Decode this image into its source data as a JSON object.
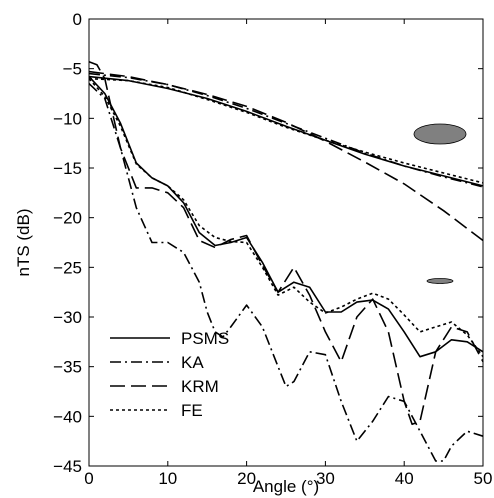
{
  "chart_data": {
    "type": "line",
    "title": "",
    "xlabel": "Angle (°)",
    "ylabel": "nTS (dB)",
    "xlim": [
      0,
      50
    ],
    "ylim": [
      -45,
      0
    ],
    "xticks": [
      0,
      10,
      20,
      30,
      40,
      50
    ],
    "yticks": [
      0,
      -5,
      -10,
      -15,
      -20,
      -25,
      -30,
      -35,
      -40,
      -45
    ],
    "grid": false,
    "legend_position": "bottom-left",
    "legend": [
      "PSMS",
      "KA",
      "KRM",
      "FE"
    ],
    "groups": [
      {
        "shape": "thick ellipse",
        "color": "#808080",
        "series": [
          {
            "name": "PSMS",
            "style": "solid",
            "x": [
              0,
              5,
              10,
              15,
              20,
              25,
              30,
              35,
              40,
              45,
              50
            ],
            "y": [
              -5.8,
              -6.2,
              -7.0,
              -8.0,
              -9.3,
              -10.8,
              -12.2,
              -13.6,
              -14.8,
              -15.8,
              -16.8
            ]
          },
          {
            "name": "KA",
            "style": "dashdot",
            "x": [
              0,
              5,
              10,
              15,
              20,
              25,
              30,
              35,
              40,
              45,
              50
            ],
            "y": [
              -5.5,
              -5.9,
              -6.6,
              -7.7,
              -9.0,
              -10.5,
              -12.0,
              -13.5,
              -14.8,
              -15.9,
              -16.9
            ]
          },
          {
            "name": "KRM",
            "style": "dashed",
            "x": [
              0,
              5,
              10,
              15,
              20,
              25,
              30,
              35,
              40,
              45,
              50
            ],
            "y": [
              -5.3,
              -5.8,
              -6.6,
              -7.6,
              -8.8,
              -10.4,
              -12.3,
              -14.4,
              -16.6,
              -19.3,
              -22.3
            ]
          },
          {
            "name": "FE",
            "style": "dotted",
            "x": [
              0,
              5,
              10,
              15,
              20,
              25,
              30,
              35,
              40,
              45,
              50
            ],
            "y": [
              -6.0,
              -6.2,
              -6.9,
              -8.1,
              -9.4,
              -10.9,
              -12.2,
              -13.4,
              -14.5,
              -15.5,
              -16.5
            ]
          }
        ]
      },
      {
        "shape": "thin ellipse",
        "color": "#808080",
        "series": [
          {
            "name": "PSMS",
            "style": "solid",
            "x": [
              0,
              2,
              4,
              6,
              8,
              10,
              12,
              14,
              16,
              18,
              20,
              22,
              24,
              26,
              28,
              30,
              32,
              34,
              36,
              38,
              40,
              42,
              44,
              46,
              48,
              50
            ],
            "y": [
              -5.8,
              -7.5,
              -10.5,
              -14.5,
              -16.0,
              -16.8,
              -18.5,
              -21.5,
              -22.8,
              -22.5,
              -22.0,
              -24.5,
              -27.5,
              -26.5,
              -27.0,
              -29.5,
              -29.5,
              -28.5,
              -28.3,
              -29.2,
              -31.5,
              -34.0,
              -33.5,
              -32.3,
              -32.5,
              -33.5
            ]
          },
          {
            "name": "KA",
            "style": "dashdot",
            "x": [
              0,
              2,
              4,
              6,
              8,
              10,
              12,
              14,
              15,
              16,
              17,
              18,
              20,
              22,
              24,
              25,
              26,
              28,
              30,
              32,
              34,
              36,
              38,
              40,
              42,
              44,
              45,
              46,
              48,
              50
            ],
            "y": [
              -6.5,
              -8.0,
              -13.0,
              -19.0,
              -22.5,
              -22.5,
              -23.5,
              -26.5,
              -29.5,
              -31.5,
              -32.0,
              -31.0,
              -28.8,
              -31.0,
              -35.0,
              -37.0,
              -36.5,
              -33.5,
              -33.8,
              -38.5,
              -42.5,
              -40.5,
              -38.0,
              -38.5,
              -41.5,
              -44.5,
              -44.5,
              -43.0,
              -41.5,
              -42.0
            ]
          },
          {
            "name": "KRM",
            "style": "dashed",
            "x": [
              0,
              1,
              2,
              3,
              4,
              6,
              8,
              10,
              12,
              14,
              16,
              18,
              20,
              22,
              24,
              26,
              28,
              30,
              32,
              34,
              36,
              38,
              40,
              41,
              42,
              44,
              46,
              48,
              50
            ],
            "y": [
              -4.3,
              -4.6,
              -6.0,
              -9.5,
              -13.0,
              -17.0,
              -17.0,
              -17.5,
              -19.0,
              -22.3,
              -23.0,
              -22.2,
              -21.8,
              -24.8,
              -27.5,
              -25.0,
              -27.8,
              -31.5,
              -34.5,
              -30.0,
              -28.2,
              -31.5,
              -38.5,
              -40.8,
              -40.5,
              -33.5,
              -31.0,
              -31.5,
              -34.5
            ]
          },
          {
            "name": "FE",
            "style": "dotted",
            "x": [
              0,
              2,
              4,
              6,
              8,
              10,
              12,
              14,
              16,
              18,
              20,
              22,
              24,
              26,
              28,
              30,
              32,
              34,
              36,
              38,
              40,
              42,
              44,
              46,
              48,
              50
            ],
            "y": [
              -6.0,
              -7.8,
              -10.8,
              -14.6,
              -16.0,
              -16.8,
              -18.2,
              -20.8,
              -22.0,
              -22.4,
              -22.5,
              -25.0,
              -27.8,
              -27.0,
              -28.5,
              -29.6,
              -29.0,
              -28.2,
              -27.6,
              -28.2,
              -29.8,
              -31.5,
              -31.0,
              -30.5,
              -31.8,
              -34.0
            ]
          }
        ]
      }
    ]
  }
}
